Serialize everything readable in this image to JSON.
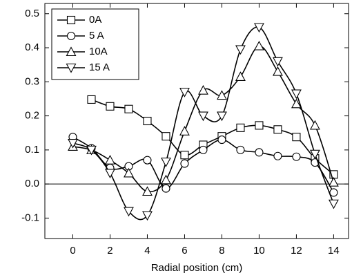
{
  "chart_data": {
    "type": "scatter-smooth",
    "x_label": "Radial position (cm)",
    "xlim": [
      -1.5,
      14.8
    ],
    "ylim": [
      -0.16,
      0.53
    ],
    "xticks": [
      0,
      2,
      4,
      6,
      8,
      10,
      12,
      14
    ],
    "yticks": [
      -0.1,
      {
        "value": 0,
        "label": "0.0"
      },
      0.1,
      0.2,
      0.3,
      0.4,
      0.5
    ],
    "reference_line": 0,
    "legend": "upper-left",
    "series": [
      {
        "name": "0A",
        "marker": "square",
        "color": "#000000",
        "x": [
          1,
          2,
          3,
          4,
          5,
          6,
          7,
          8,
          9,
          10,
          11,
          12,
          13,
          14
        ],
        "values": [
          0.248,
          0.228,
          0.22,
          0.185,
          0.14,
          0.085,
          0.115,
          0.14,
          0.165,
          0.172,
          0.16,
          0.138,
          0.075,
          0.028
        ]
      },
      {
        "name": "5 A",
        "marker": "circle",
        "color": "#000000",
        "x": [
          0,
          1,
          2,
          3,
          4,
          5,
          6,
          7,
          8,
          9,
          10,
          11,
          12,
          13,
          14
        ],
        "values": [
          0.138,
          0.105,
          0.047,
          0.052,
          0.07,
          -0.013,
          0.06,
          0.1,
          0.13,
          0.1,
          0.093,
          0.082,
          0.08,
          0.063,
          -0.025
        ]
      },
      {
        "name": "10A",
        "marker": "triangle-up",
        "color": "#000000",
        "x": [
          0,
          1,
          2,
          3,
          4,
          5,
          6,
          7,
          8,
          9,
          10,
          11,
          12,
          13,
          14
        ],
        "values": [
          0.11,
          0.1,
          0.07,
          0.032,
          -0.022,
          0.012,
          0.155,
          0.275,
          0.26,
          0.315,
          0.405,
          0.33,
          0.235,
          0.172,
          0.005
        ]
      },
      {
        "name": "15 A",
        "marker": "triangle-down",
        "color": "#000000",
        "x": [
          0,
          1,
          2,
          3,
          4,
          5,
          6,
          7,
          8,
          9,
          10,
          11,
          12,
          13,
          14
        ],
        "values": [
          0.12,
          0.1,
          0.032,
          -0.08,
          -0.092,
          0.065,
          0.27,
          0.2,
          0.2,
          0.395,
          0.46,
          0.36,
          0.265,
          0.088,
          -0.058
        ]
      }
    ]
  }
}
